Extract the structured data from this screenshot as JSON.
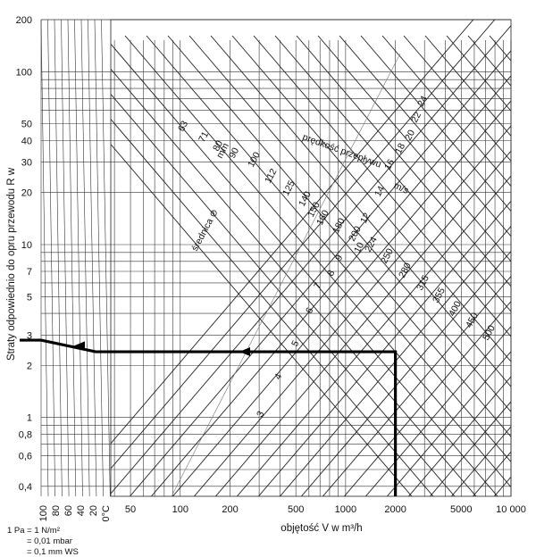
{
  "chart_data": {
    "type": "line",
    "title": "",
    "xlabel": "objętość V w m³/h",
    "ylabel": "Straty odpowiednio do opru przewodu R w",
    "x_scale": "log",
    "y_scale": "log",
    "xlim": [
      38,
      10000
    ],
    "ylim": [
      0.35,
      200
    ],
    "x_ticks": [
      50,
      100,
      200,
      500,
      1000,
      2000,
      5000,
      10000
    ],
    "x_tick_labels": [
      "50",
      "100",
      "200",
      "500",
      "1000",
      "2000",
      "5000",
      "10 000"
    ],
    "y_ticks": [
      0.4,
      0.6,
      0.8,
      1,
      2,
      3,
      5,
      7,
      10,
      20,
      30,
      40,
      50,
      100,
      200
    ],
    "y_tick_labels": [
      "0,4",
      "0,6",
      "0,8",
      "1",
      "2",
      "3",
      "5",
      "7",
      "10",
      "20",
      "30",
      "40",
      "50",
      "100",
      "200"
    ],
    "temperature_ticks": [
      "100",
      "80",
      "60",
      "40",
      "20",
      "0°C"
    ],
    "diameter_label": "średnica ⊘",
    "diameters_mm": [
      63,
      71,
      80,
      90,
      100,
      112,
      125,
      140,
      150,
      160,
      180,
      200,
      224,
      250,
      280,
      315,
      355,
      400,
      450,
      500
    ],
    "diameter_unit": "mm",
    "velocity_label": "prędkość przepływu",
    "velocity_unit": "m/s",
    "velocities": [
      3,
      4,
      5,
      6,
      7,
      8,
      9,
      10,
      12,
      14,
      16,
      18,
      20,
      22,
      24
    ],
    "example_path": {
      "volume_flow": 2000,
      "pressure_loss": 2.4,
      "pressure_loss_corrected": 2.8
    },
    "grid": true
  },
  "note": {
    "line1": "1 Pa = 1 N/m²",
    "line2": "= 0,01 mbar",
    "line3": "= 0,1 mm WS"
  }
}
